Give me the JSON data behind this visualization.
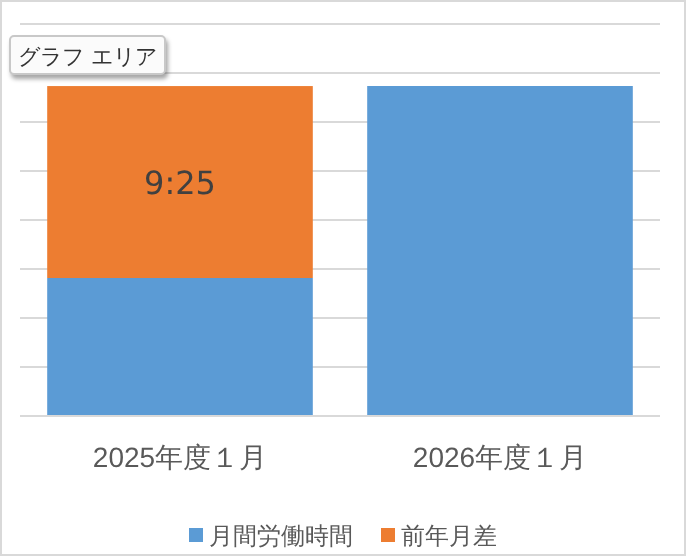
{
  "chart_data": {
    "type": "bar",
    "categories": [
      "2025年度１月",
      "2026年度１月"
    ],
    "stacked": true,
    "grid": true,
    "legend": "bottom",
    "series": [
      {
        "name": "月間労働時間",
        "color": "#5b9bd5",
        "values": [
          6.77,
          16.19
        ]
      },
      {
        "name": "前年月差",
        "color": "#ed7d31",
        "values": [
          9.4167,
          null
        ],
        "value_labels": [
          "9:25",
          null
        ]
      }
    ],
    "annotations": [
      "グラフ エリア"
    ]
  }
}
